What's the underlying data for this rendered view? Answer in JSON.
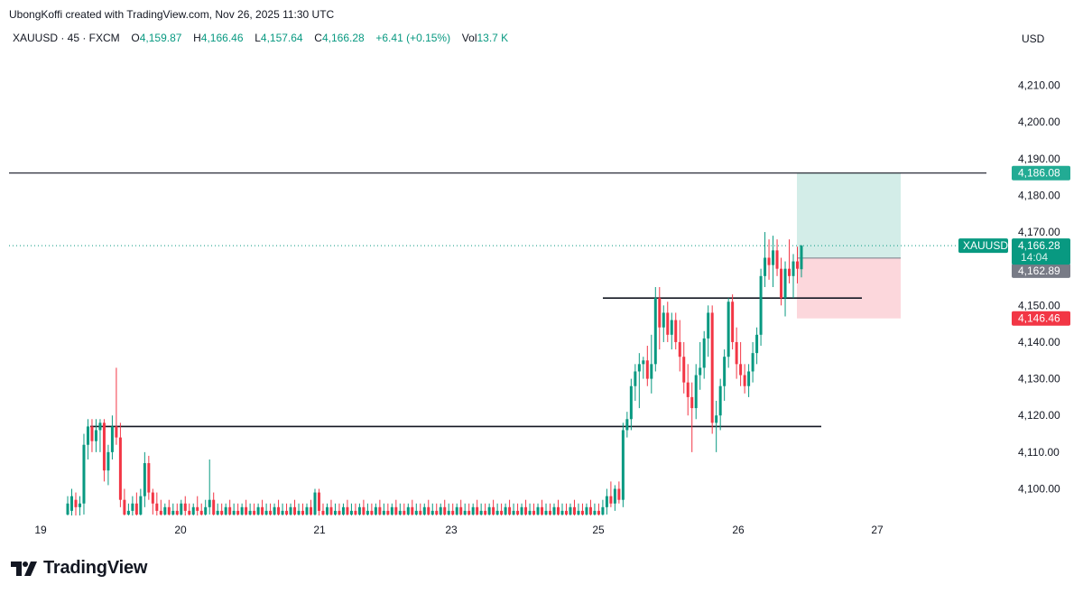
{
  "attribution": "UbongKoffi created with TradingView.com, Nov 26, 2025 11:30 UTC",
  "legend": {
    "symbol": "XAUUSD · 45 · FXCM",
    "open_label": "O",
    "open": "4,159.87",
    "high_label": "H",
    "high": "4,166.46",
    "low_label": "L",
    "low": "4,157.64",
    "close_label": "C",
    "close": "4,166.28",
    "change": "+6.41 (+0.15%)",
    "volume_label": "Vol",
    "volume": "13.7 K"
  },
  "currency": "USD",
  "brand": {
    "name": "TradingView"
  },
  "colors": {
    "up": "#089981",
    "down": "#f23645",
    "target_zone": "#d3ede8",
    "stop_zone": "#fcd7dc",
    "target_label": "#22ab94",
    "stop_label": "#f23645",
    "entry_label": "#787b86",
    "price_line": "#089981"
  },
  "chart_data": {
    "type": "candlestick",
    "symbol": "XAUUSD",
    "timeframe": "45",
    "x_ticks": [
      "19",
      "20",
      "21",
      "23",
      "25",
      "26",
      "27"
    ],
    "y_ticks": [
      4100,
      4110,
      4120,
      4130,
      4140,
      4150,
      4160,
      4170,
      4180,
      4190,
      4200,
      4210
    ],
    "y_tick_labels": [
      "4,100.00",
      "4,110.00",
      "4,120.00",
      "4,130.00",
      "4,140.00",
      "4,150.00",
      "4,160.00",
      "4,170.00",
      "4,180.00",
      "4,190.00",
      "4,200.00",
      "4,210.00"
    ],
    "ylim": [
      4092,
      4218
    ],
    "horizontal_lines": [
      {
        "price": 4186.08,
        "from": "19",
        "to": "right-edge"
      },
      {
        "price": 4152,
        "from": "25",
        "to": "26-27"
      },
      {
        "price": 4117,
        "from": "19-20",
        "to": "26-27"
      }
    ],
    "position": {
      "side": "long",
      "entry": 4162.89,
      "target": 4186.08,
      "stop": 4146.46,
      "target_label": "4,186.08",
      "entry_label": "4,162.89",
      "stop_label": "4,146.46"
    },
    "current_price": {
      "symbol_label": "XAUUSD",
      "price": 4166.28,
      "price_label": "4,166.28",
      "countdown": "14:04"
    },
    "candles": [
      {
        "o": 4093,
        "h": 4098,
        "l": 4092,
        "c": 4096
      },
      {
        "o": 4094,
        "h": 4100,
        "l": 4092,
        "c": 4098
      },
      {
        "o": 4097,
        "h": 4099,
        "l": 4092,
        "c": 4095
      },
      {
        "o": 4095,
        "h": 4098,
        "l": 4092,
        "c": 4096
      },
      {
        "o": 4096,
        "h": 4115,
        "l": 4093,
        "c": 4112
      },
      {
        "o": 4112,
        "h": 4119,
        "l": 4108,
        "c": 4117
      },
      {
        "o": 4117,
        "h": 4119,
        "l": 4110,
        "c": 4113
      },
      {
        "o": 4113,
        "h": 4119,
        "l": 4110,
        "c": 4116
      },
      {
        "o": 4116,
        "h": 4119,
        "l": 4110,
        "c": 4118
      },
      {
        "o": 4118,
        "h": 4119,
        "l": 4102,
        "c": 4105
      },
      {
        "o": 4105,
        "h": 4112,
        "l": 4101,
        "c": 4110
      },
      {
        "o": 4110,
        "h": 4120,
        "l": 4108,
        "c": 4117
      },
      {
        "o": 4117,
        "h": 4133,
        "l": 4112,
        "c": 4114
      },
      {
        "o": 4114,
        "h": 4118,
        "l": 4095,
        "c": 4097
      },
      {
        "o": 4097,
        "h": 4100,
        "l": 4092,
        "c": 4093
      },
      {
        "o": 4093,
        "h": 4096,
        "l": 4092,
        "c": 4094
      },
      {
        "o": 4094,
        "h": 4098,
        "l": 4092,
        "c": 4096
      },
      {
        "o": 4096,
        "h": 4099,
        "l": 4092,
        "c": 4093
      },
      {
        "o": 4093,
        "h": 4100,
        "l": 4092,
        "c": 4098
      },
      {
        "o": 4098,
        "h": 4110,
        "l": 4095,
        "c": 4107
      },
      {
        "o": 4107,
        "h": 4109,
        "l": 4097,
        "c": 4099
      },
      {
        "o": 4099,
        "h": 4100,
        "l": 4093,
        "c": 4096
      },
      {
        "o": 4096,
        "h": 4099,
        "l": 4092,
        "c": 4094
      },
      {
        "o": 4094,
        "h": 4097,
        "l": 4092,
        "c": 4093
      },
      {
        "o": 4093,
        "h": 4096,
        "l": 4092,
        "c": 4095
      },
      {
        "o": 4095,
        "h": 4097,
        "l": 4092,
        "c": 4093
      },
      {
        "o": 4093,
        "h": 4096,
        "l": 4092,
        "c": 4094
      },
      {
        "o": 4094,
        "h": 4096,
        "l": 4092,
        "c": 4093
      },
      {
        "o": 4093,
        "h": 4097,
        "l": 4092,
        "c": 4096
      },
      {
        "o": 4096,
        "h": 4098,
        "l": 4092,
        "c": 4094
      },
      {
        "o": 4094,
        "h": 4096,
        "l": 4092,
        "c": 4093
      },
      {
        "o": 4093,
        "h": 4096,
        "l": 4092,
        "c": 4095
      },
      {
        "o": 4095,
        "h": 4098,
        "l": 4092,
        "c": 4094
      },
      {
        "o": 4094,
        "h": 4096,
        "l": 4092,
        "c": 4093
      },
      {
        "o": 4093,
        "h": 4097,
        "l": 4092,
        "c": 4095
      },
      {
        "o": 4095,
        "h": 4108,
        "l": 4093,
        "c": 4097
      },
      {
        "o": 4097,
        "h": 4099,
        "l": 4092,
        "c": 4093
      },
      {
        "o": 4093,
        "h": 4096,
        "l": 4092,
        "c": 4094
      },
      {
        "o": 4094,
        "h": 4096,
        "l": 4092,
        "c": 4093
      },
      {
        "o": 4093,
        "h": 4096,
        "l": 4092,
        "c": 4095
      },
      {
        "o": 4095,
        "h": 4097,
        "l": 4092,
        "c": 4093
      },
      {
        "o": 4093,
        "h": 4096,
        "l": 4092,
        "c": 4094
      },
      {
        "o": 4094,
        "h": 4096,
        "l": 4092,
        "c": 4093
      },
      {
        "o": 4093,
        "h": 4096,
        "l": 4092,
        "c": 4095
      },
      {
        "o": 4095,
        "h": 4097,
        "l": 4092,
        "c": 4093
      },
      {
        "o": 4093,
        "h": 4096,
        "l": 4092,
        "c": 4094
      },
      {
        "o": 4094,
        "h": 4096,
        "l": 4092,
        "c": 4093
      },
      {
        "o": 4093,
        "h": 4096,
        "l": 4092,
        "c": 4095
      },
      {
        "o": 4095,
        "h": 4097,
        "l": 4092,
        "c": 4093
      },
      {
        "o": 4093,
        "h": 4096,
        "l": 4092,
        "c": 4094
      },
      {
        "o": 4094,
        "h": 4096,
        "l": 4092,
        "c": 4093
      },
      {
        "o": 4093,
        "h": 4096,
        "l": 4092,
        "c": 4095
      },
      {
        "o": 4095,
        "h": 4097,
        "l": 4092,
        "c": 4093
      },
      {
        "o": 4093,
        "h": 4096,
        "l": 4092,
        "c": 4094
      },
      {
        "o": 4094,
        "h": 4096,
        "l": 4092,
        "c": 4093
      },
      {
        "o": 4093,
        "h": 4096,
        "l": 4092,
        "c": 4095
      },
      {
        "o": 4095,
        "h": 4097,
        "l": 4092,
        "c": 4093
      },
      {
        "o": 4093,
        "h": 4096,
        "l": 4092,
        "c": 4094
      },
      {
        "o": 4094,
        "h": 4096,
        "l": 4092,
        "c": 4093
      },
      {
        "o": 4093,
        "h": 4096,
        "l": 4092,
        "c": 4095
      },
      {
        "o": 4095,
        "h": 4097,
        "l": 4092,
        "c": 4093
      },
      {
        "o": 4093,
        "h": 4100,
        "l": 4092,
        "c": 4099
      },
      {
        "o": 4099,
        "h": 4100,
        "l": 4092,
        "c": 4094
      },
      {
        "o": 4094,
        "h": 4096,
        "l": 4092,
        "c": 4093
      },
      {
        "o": 4093,
        "h": 4096,
        "l": 4092,
        "c": 4095
      },
      {
        "o": 4095,
        "h": 4097,
        "l": 4092,
        "c": 4093
      },
      {
        "o": 4093,
        "h": 4096,
        "l": 4092,
        "c": 4094
      },
      {
        "o": 4094,
        "h": 4096,
        "l": 4092,
        "c": 4093
      },
      {
        "o": 4093,
        "h": 4096,
        "l": 4092,
        "c": 4095
      },
      {
        "o": 4095,
        "h": 4097,
        "l": 4092,
        "c": 4093
      },
      {
        "o": 4093,
        "h": 4096,
        "l": 4092,
        "c": 4094
      },
      {
        "o": 4094,
        "h": 4096,
        "l": 4092,
        "c": 4093
      },
      {
        "o": 4093,
        "h": 4096,
        "l": 4092,
        "c": 4095
      },
      {
        "o": 4095,
        "h": 4097,
        "l": 4092,
        "c": 4093
      },
      {
        "o": 4093,
        "h": 4096,
        "l": 4092,
        "c": 4094
      },
      {
        "o": 4094,
        "h": 4096,
        "l": 4092,
        "c": 4093
      },
      {
        "o": 4093,
        "h": 4096,
        "l": 4092,
        "c": 4095
      },
      {
        "o": 4095,
        "h": 4097,
        "l": 4092,
        "c": 4093
      },
      {
        "o": 4093,
        "h": 4096,
        "l": 4092,
        "c": 4094
      },
      {
        "o": 4094,
        "h": 4096,
        "l": 4092,
        "c": 4093
      },
      {
        "o": 4093,
        "h": 4096,
        "l": 4092,
        "c": 4095
      },
      {
        "o": 4095,
        "h": 4097,
        "l": 4092,
        "c": 4093
      },
      {
        "o": 4093,
        "h": 4096,
        "l": 4092,
        "c": 4094
      },
      {
        "o": 4094,
        "h": 4096,
        "l": 4092,
        "c": 4093
      },
      {
        "o": 4093,
        "h": 4096,
        "l": 4092,
        "c": 4095
      },
      {
        "o": 4095,
        "h": 4097,
        "l": 4092,
        "c": 4093
      },
      {
        "o": 4093,
        "h": 4096,
        "l": 4092,
        "c": 4094
      },
      {
        "o": 4094,
        "h": 4096,
        "l": 4092,
        "c": 4093
      },
      {
        "o": 4093,
        "h": 4096,
        "l": 4092,
        "c": 4095
      },
      {
        "o": 4095,
        "h": 4097,
        "l": 4092,
        "c": 4093
      },
      {
        "o": 4093,
        "h": 4096,
        "l": 4092,
        "c": 4094
      },
      {
        "o": 4094,
        "h": 4096,
        "l": 4092,
        "c": 4093
      },
      {
        "o": 4093,
        "h": 4096,
        "l": 4092,
        "c": 4095
      },
      {
        "o": 4095,
        "h": 4097,
        "l": 4092,
        "c": 4093
      },
      {
        "o": 4093,
        "h": 4096,
        "l": 4092,
        "c": 4094
      },
      {
        "o": 4094,
        "h": 4096,
        "l": 4092,
        "c": 4093
      },
      {
        "o": 4093,
        "h": 4096,
        "l": 4092,
        "c": 4095
      },
      {
        "o": 4095,
        "h": 4097,
        "l": 4092,
        "c": 4093
      },
      {
        "o": 4093,
        "h": 4096,
        "l": 4092,
        "c": 4094
      },
      {
        "o": 4094,
        "h": 4096,
        "l": 4092,
        "c": 4093
      },
      {
        "o": 4093,
        "h": 4096,
        "l": 4092,
        "c": 4095
      },
      {
        "o": 4095,
        "h": 4097,
        "l": 4092,
        "c": 4093
      },
      {
        "o": 4093,
        "h": 4096,
        "l": 4092,
        "c": 4094
      },
      {
        "o": 4094,
        "h": 4096,
        "l": 4092,
        "c": 4093
      },
      {
        "o": 4093,
        "h": 4096,
        "l": 4092,
        "c": 4095
      },
      {
        "o": 4095,
        "h": 4097,
        "l": 4092,
        "c": 4093
      },
      {
        "o": 4093,
        "h": 4096,
        "l": 4092,
        "c": 4094
      },
      {
        "o": 4094,
        "h": 4096,
        "l": 4092,
        "c": 4093
      },
      {
        "o": 4093,
        "h": 4096,
        "l": 4092,
        "c": 4095
      },
      {
        "o": 4095,
        "h": 4097,
        "l": 4092,
        "c": 4093
      },
      {
        "o": 4093,
        "h": 4096,
        "l": 4092,
        "c": 4094
      },
      {
        "o": 4094,
        "h": 4096,
        "l": 4092,
        "c": 4093
      },
      {
        "o": 4093,
        "h": 4096,
        "l": 4092,
        "c": 4095
      },
      {
        "o": 4095,
        "h": 4097,
        "l": 4092,
        "c": 4093
      },
      {
        "o": 4093,
        "h": 4096,
        "l": 4092,
        "c": 4094
      },
      {
        "o": 4094,
        "h": 4096,
        "l": 4092,
        "c": 4093
      },
      {
        "o": 4093,
        "h": 4096,
        "l": 4092,
        "c": 4095
      },
      {
        "o": 4095,
        "h": 4097,
        "l": 4092,
        "c": 4093
      },
      {
        "o": 4093,
        "h": 4096,
        "l": 4092,
        "c": 4094
      },
      {
        "o": 4094,
        "h": 4096,
        "l": 4092,
        "c": 4093
      },
      {
        "o": 4093,
        "h": 4096,
        "l": 4092,
        "c": 4095
      },
      {
        "o": 4095,
        "h": 4097,
        "l": 4092,
        "c": 4093
      },
      {
        "o": 4093,
        "h": 4096,
        "l": 4092,
        "c": 4094
      },
      {
        "o": 4094,
        "h": 4096,
        "l": 4092,
        "c": 4093
      },
      {
        "o": 4093,
        "h": 4096,
        "l": 4092,
        "c": 4095
      },
      {
        "o": 4095,
        "h": 4097,
        "l": 4092,
        "c": 4093
      },
      {
        "o": 4093,
        "h": 4096,
        "l": 4092,
        "c": 4094
      },
      {
        "o": 4094,
        "h": 4096,
        "l": 4092,
        "c": 4093
      },
      {
        "o": 4093,
        "h": 4096,
        "l": 4092,
        "c": 4095
      },
      {
        "o": 4095,
        "h": 4097,
        "l": 4092,
        "c": 4093
      },
      {
        "o": 4093,
        "h": 4096,
        "l": 4092,
        "c": 4094
      },
      {
        "o": 4094,
        "h": 4096,
        "l": 4092,
        "c": 4093
      },
      {
        "o": 4093,
        "h": 4097,
        "l": 4092,
        "c": 4095
      },
      {
        "o": 4095,
        "h": 4100,
        "l": 4093,
        "c": 4098
      },
      {
        "o": 4098,
        "h": 4102,
        "l": 4095,
        "c": 4096
      },
      {
        "o": 4096,
        "h": 4101,
        "l": 4094,
        "c": 4100
      },
      {
        "o": 4100,
        "h": 4102,
        "l": 4096,
        "c": 4097
      },
      {
        "o": 4097,
        "h": 4118,
        "l": 4095,
        "c": 4116
      },
      {
        "o": 4116,
        "h": 4121,
        "l": 4114,
        "c": 4119
      },
      {
        "o": 4119,
        "h": 4130,
        "l": 4116,
        "c": 4128
      },
      {
        "o": 4128,
        "h": 4134,
        "l": 4124,
        "c": 4132
      },
      {
        "o": 4132,
        "h": 4137,
        "l": 4122,
        "c": 4134
      },
      {
        "o": 4134,
        "h": 4136,
        "l": 4130,
        "c": 4135
      },
      {
        "o": 4135,
        "h": 4139,
        "l": 4128,
        "c": 4130
      },
      {
        "o": 4130,
        "h": 4142,
        "l": 4126,
        "c": 4134
      },
      {
        "o": 4134,
        "h": 4155,
        "l": 4132,
        "c": 4152
      },
      {
        "o": 4152,
        "h": 4155,
        "l": 4138,
        "c": 4144
      },
      {
        "o": 4144,
        "h": 4150,
        "l": 4140,
        "c": 4148
      },
      {
        "o": 4148,
        "h": 4151,
        "l": 4140,
        "c": 4142
      },
      {
        "o": 4142,
        "h": 4148,
        "l": 4138,
        "c": 4146
      },
      {
        "o": 4146,
        "h": 4148,
        "l": 4138,
        "c": 4140
      },
      {
        "o": 4140,
        "h": 4146,
        "l": 4132,
        "c": 4136
      },
      {
        "o": 4136,
        "h": 4140,
        "l": 4126,
        "c": 4129
      },
      {
        "o": 4129,
        "h": 4134,
        "l": 4120,
        "c": 4125
      },
      {
        "o": 4125,
        "h": 4129,
        "l": 4110,
        "c": 4122
      },
      {
        "o": 4122,
        "h": 4134,
        "l": 4119,
        "c": 4131
      },
      {
        "o": 4131,
        "h": 4140,
        "l": 4127,
        "c": 4133
      },
      {
        "o": 4133,
        "h": 4143,
        "l": 4130,
        "c": 4141
      },
      {
        "o": 4141,
        "h": 4150,
        "l": 4136,
        "c": 4148
      },
      {
        "o": 4148,
        "h": 4150,
        "l": 4115,
        "c": 4118
      },
      {
        "o": 4118,
        "h": 4124,
        "l": 4110,
        "c": 4120
      },
      {
        "o": 4120,
        "h": 4130,
        "l": 4116,
        "c": 4128
      },
      {
        "o": 4128,
        "h": 4138,
        "l": 4124,
        "c": 4136
      },
      {
        "o": 4136,
        "h": 4152,
        "l": 4133,
        "c": 4151
      },
      {
        "o": 4151,
        "h": 4153,
        "l": 4138,
        "c": 4140
      },
      {
        "o": 4140,
        "h": 4144,
        "l": 4130,
        "c": 4134
      },
      {
        "o": 4134,
        "h": 4140,
        "l": 4128,
        "c": 4131
      },
      {
        "o": 4131,
        "h": 4134,
        "l": 4126,
        "c": 4128
      },
      {
        "o": 4128,
        "h": 4134,
        "l": 4125,
        "c": 4132
      },
      {
        "o": 4132,
        "h": 4140,
        "l": 4129,
        "c": 4137
      },
      {
        "o": 4137,
        "h": 4144,
        "l": 4134,
        "c": 4142
      },
      {
        "o": 4142,
        "h": 4160,
        "l": 4139,
        "c": 4158
      },
      {
        "o": 4158,
        "h": 4170,
        "l": 4155,
        "c": 4163
      },
      {
        "o": 4163,
        "h": 4168,
        "l": 4157,
        "c": 4161
      },
      {
        "o": 4161,
        "h": 4169,
        "l": 4155,
        "c": 4165
      },
      {
        "o": 4165,
        "h": 4168,
        "l": 4158,
        "c": 4160
      },
      {
        "o": 4160,
        "h": 4163,
        "l": 4150,
        "c": 4152
      },
      {
        "o": 4152,
        "h": 4162,
        "l": 4147,
        "c": 4160
      },
      {
        "o": 4160,
        "h": 4168,
        "l": 4156,
        "c": 4158
      },
      {
        "o": 4158,
        "h": 4164,
        "l": 4152,
        "c": 4162
      },
      {
        "o": 4162,
        "h": 4166,
        "l": 4156,
        "c": 4160
      },
      {
        "o": 4159.87,
        "h": 4166.46,
        "l": 4157.64,
        "c": 4166.28
      }
    ]
  }
}
